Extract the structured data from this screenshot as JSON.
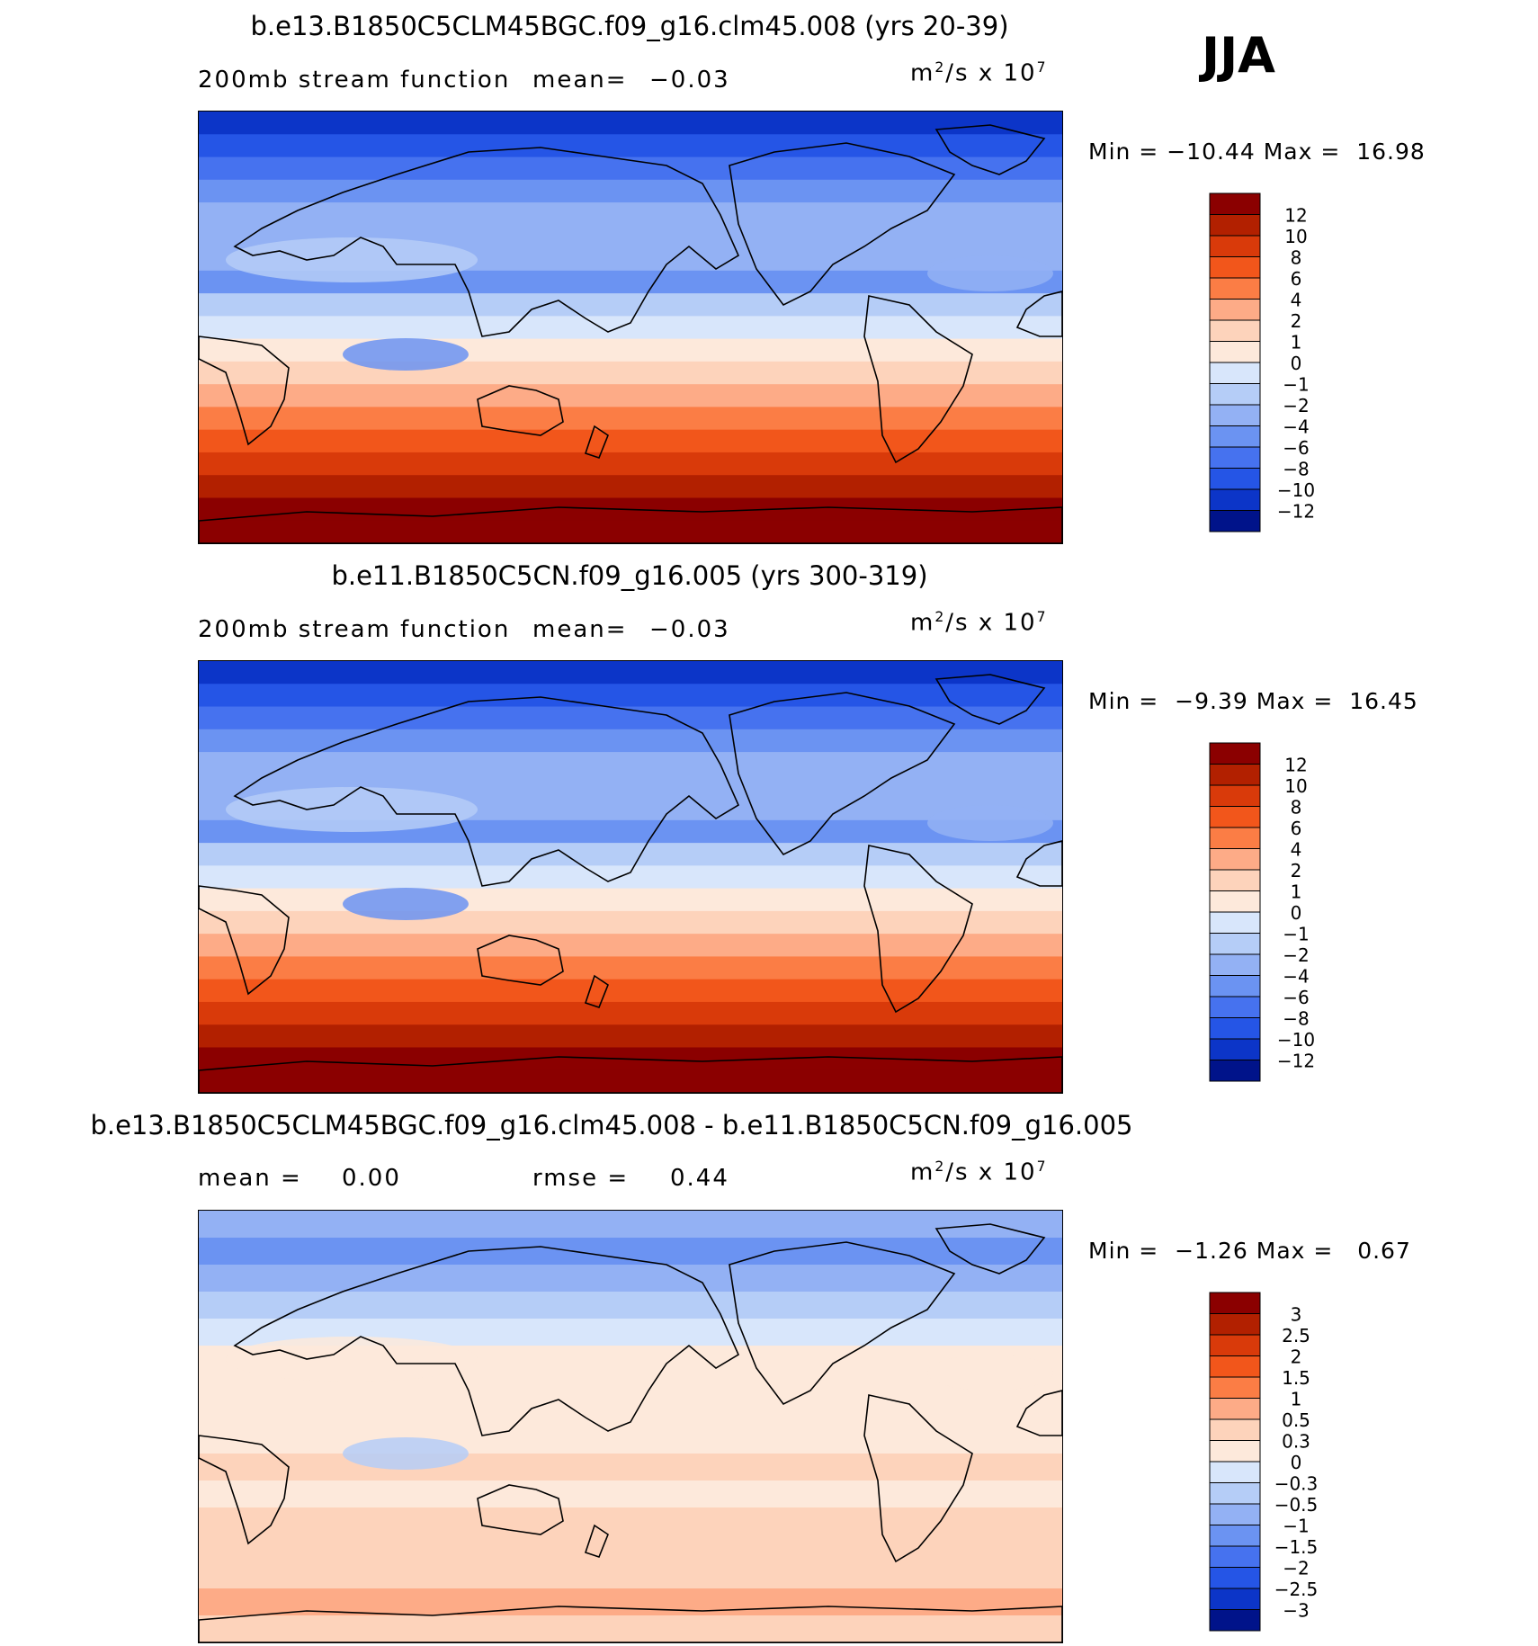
{
  "season": "JJA",
  "units": "m²/s x 10⁷",
  "panels": [
    {
      "title": "b.e13.B1850C5CLM45BGC.f09_g16.clm45.008 (yrs 20-39)",
      "left_label": "200mb stream function",
      "stat1_label": "mean=",
      "stat1_value": "−0.03",
      "stat2_label": "",
      "stat2_value": "",
      "min_label": "Min =",
      "min_value": "−10.44",
      "max_label": "Max =",
      "max_value": "16.98",
      "colorbar": {
        "levels": [
          "12",
          "10",
          "8",
          "6",
          "4",
          "2",
          "1",
          "0",
          "−1",
          "−2",
          "−4",
          "−6",
          "−8",
          "−10",
          "−12"
        ],
        "colors": [
          "#8b0000",
          "#b22000",
          "#d93a0a",
          "#f2561b",
          "#fb7d45",
          "#fdab87",
          "#fdd3bb",
          "#fde9db",
          "#d8e6fb",
          "#b5cdf7",
          "#93b1f4",
          "#6b93f2",
          "#4672ef",
          "#2555e6",
          "#0c35c8",
          "#00138a"
        ]
      },
      "bands_n_to_s": [
        "#0c35c8",
        "#2555e6",
        "#4672ef",
        "#6b93f2",
        "#93b1f4",
        "#93b1f4",
        "#93b1f4",
        "#6b93f2",
        "#b5cdf7",
        "#d8e6fb",
        "#fde9db",
        "#fdd3bb",
        "#fdab87",
        "#fb7d45",
        "#f2561b",
        "#d93a0a",
        "#b22000",
        "#8b0000",
        "#8b0000"
      ]
    },
    {
      "title": "b.e11.B1850C5CN.f09_g16.005 (yrs 300-319)",
      "left_label": "200mb stream function",
      "stat1_label": "mean=",
      "stat1_value": "−0.03",
      "stat2_label": "",
      "stat2_value": "",
      "min_label": "Min =",
      "min_value": "−9.39",
      "max_label": "Max =",
      "max_value": "16.45",
      "colorbar": {
        "levels": [
          "12",
          "10",
          "8",
          "6",
          "4",
          "2",
          "1",
          "0",
          "−1",
          "−2",
          "−4",
          "−6",
          "−8",
          "−10",
          "−12"
        ],
        "colors": [
          "#8b0000",
          "#b22000",
          "#d93a0a",
          "#f2561b",
          "#fb7d45",
          "#fdab87",
          "#fdd3bb",
          "#fde9db",
          "#d8e6fb",
          "#b5cdf7",
          "#93b1f4",
          "#6b93f2",
          "#4672ef",
          "#2555e6",
          "#0c35c8",
          "#00138a"
        ]
      },
      "bands_n_to_s": [
        "#0c35c8",
        "#2555e6",
        "#4672ef",
        "#6b93f2",
        "#93b1f4",
        "#93b1f4",
        "#93b1f4",
        "#6b93f2",
        "#b5cdf7",
        "#d8e6fb",
        "#fde9db",
        "#fdd3bb",
        "#fdab87",
        "#fb7d45",
        "#f2561b",
        "#d93a0a",
        "#b22000",
        "#8b0000",
        "#8b0000"
      ]
    },
    {
      "title": "b.e13.B1850C5CLM45BGC.f09_g16.clm45.008 - b.e11.B1850C5CN.f09_g16.005",
      "left_label": "",
      "stat1_label": "mean =",
      "stat1_value": "0.00",
      "stat2_label": "rmse =",
      "stat2_value": "0.44",
      "min_label": "Min =",
      "min_value": "−1.26",
      "max_label": "Max =",
      "max_value": "0.67",
      "colorbar": {
        "levels": [
          "3",
          "2.5",
          "2",
          "1.5",
          "1",
          "0.5",
          "0.3",
          "0",
          "−0.3",
          "−0.5",
          "−1",
          "−1.5",
          "−2",
          "−2.5",
          "−3"
        ],
        "colors": [
          "#8b0000",
          "#b22000",
          "#d93a0a",
          "#f2561b",
          "#fb7d45",
          "#fdab87",
          "#fdd3bb",
          "#fde9db",
          "#d8e6fb",
          "#b5cdf7",
          "#93b1f4",
          "#6b93f2",
          "#4672ef",
          "#2555e6",
          "#0c35c8",
          "#00138a"
        ]
      },
      "bands_n_to_s": [
        "#93b1f4",
        "#6b93f2",
        "#93b1f4",
        "#b5cdf7",
        "#d8e6fb",
        "#fde9db",
        "#fde9db",
        "#fde9db",
        "#fde9db",
        "#fdd3bb",
        "#fde9db",
        "#fdd3bb",
        "#fdd3bb",
        "#fdd3bb",
        "#fdab87",
        "#fdd3bb"
      ]
    }
  ]
}
